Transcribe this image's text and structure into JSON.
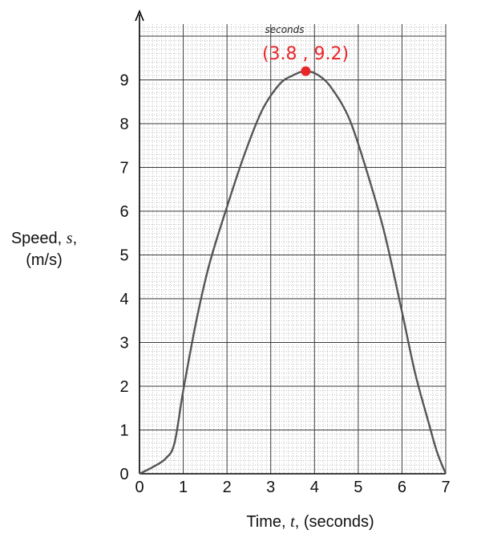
{
  "chart_data": {
    "type": "line",
    "xlabel_parts": [
      "Time, ",
      "t",
      ", (seconds)"
    ],
    "ylabel_parts": [
      "Speed, ",
      "s",
      ",",
      "(m/s)"
    ],
    "x_ticks": [
      "0",
      "1",
      "2",
      "3",
      "4",
      "5",
      "6",
      "7"
    ],
    "y_ticks": [
      "0",
      "1",
      "2",
      "3",
      "4",
      "5",
      "6",
      "7",
      "8",
      "9"
    ],
    "xlim": [
      0,
      7
    ],
    "ylim": [
      0,
      9.2
    ],
    "grid": true,
    "minor_grid": true,
    "series": [
      {
        "x": [
          0,
          0.3,
          0.6,
          0.8,
          1.0,
          1.3,
          1.6,
          2.0,
          2.4,
          2.8,
          3.2,
          3.5,
          3.8,
          4.1,
          4.4,
          4.8,
          5.2,
          5.6,
          6.0,
          6.3,
          6.6,
          6.8,
          7.0
        ],
        "y": [
          0,
          0.15,
          0.35,
          0.7,
          1.9,
          3.5,
          4.8,
          6.1,
          7.3,
          8.3,
          8.9,
          9.1,
          9.2,
          9.1,
          8.8,
          8.1,
          6.9,
          5.5,
          3.7,
          2.3,
          1.2,
          0.5,
          0
        ],
        "color": "#555555"
      }
    ],
    "annotations": [
      {
        "text": "seconds",
        "style": "italic"
      },
      {
        "text": "(3.8 , 9.2)",
        "x": 3.8,
        "y": 9.2,
        "color": "#e8262a"
      }
    ]
  }
}
